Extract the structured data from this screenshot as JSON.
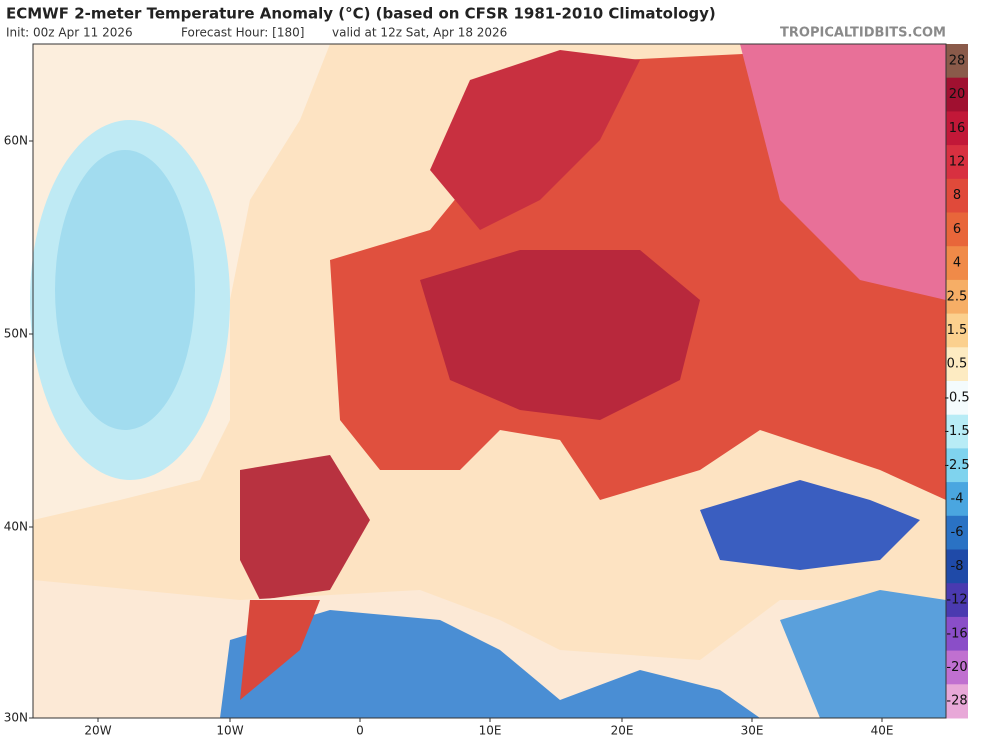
{
  "header": {
    "title": "ECMWF 2-meter Temperature Anomaly (°C) (based on CFSR 1981-2010 Climatology)",
    "init": "Init: 00z Apr 11 2026",
    "forecast_hour": "Forecast Hour: [180]",
    "valid": "valid at 12z Sat, Apr 18 2026",
    "brand": "TROPICALTIDBITS.COM"
  },
  "map": {
    "lat_labels": [
      "60N",
      "50N",
      "40N",
      "30N"
    ],
    "lon_labels": [
      "20W",
      "10W",
      "0",
      "10E",
      "20E",
      "30E",
      "40E"
    ]
  },
  "colorbar": {
    "labels": [
      28,
      20,
      16,
      12,
      8,
      6,
      4,
      2.5,
      1.5,
      0.5,
      -0.5,
      -1.5,
      -2.5,
      -4,
      -6,
      -8,
      -12,
      -16,
      -20,
      -28
    ],
    "colors": [
      "#8a5a4a",
      "#a01030",
      "#c21838",
      "#d83040",
      "#e04a3a",
      "#e8663a",
      "#f08a48",
      "#f6ae66",
      "#fbd08e",
      "#fdebc2",
      "#f4fbfd",
      "#b8ecf6",
      "#7fd3ee",
      "#4aa6e0",
      "#2a72c4",
      "#1f4aa8",
      "#4a3ab0",
      "#8a4ec8",
      "#c070d0",
      "#e8a8d8"
    ]
  }
}
